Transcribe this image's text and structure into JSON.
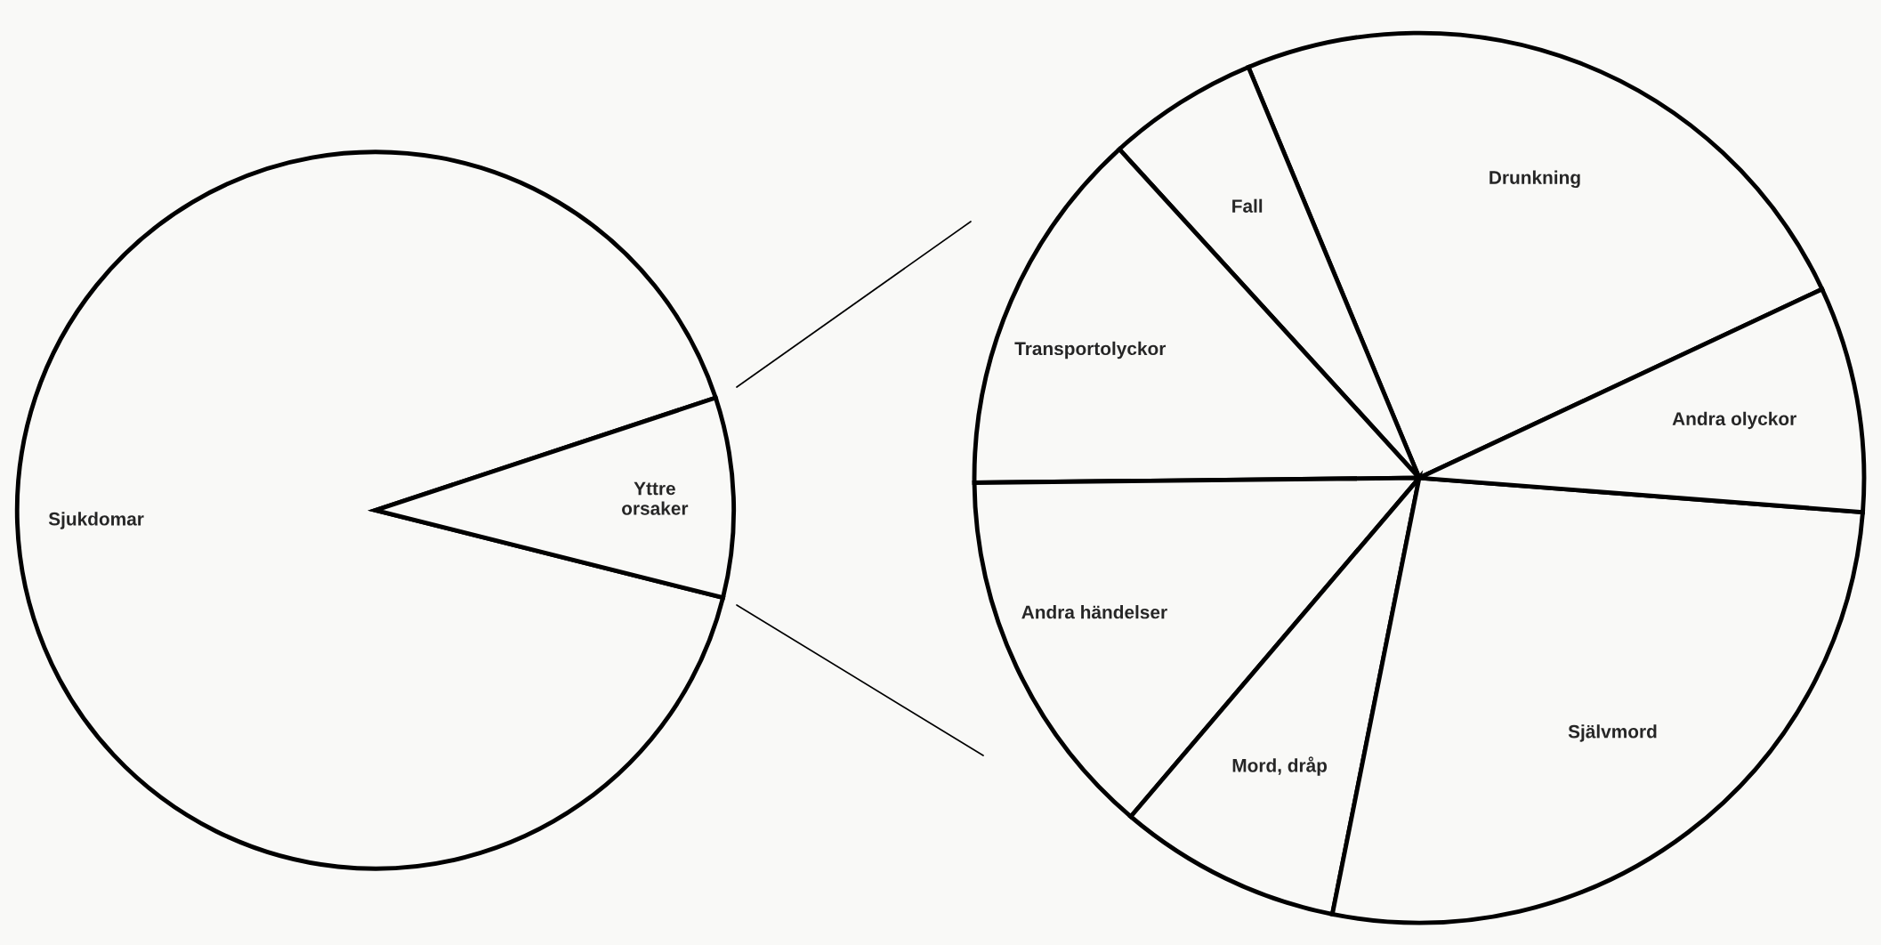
{
  "chart_data": [
    {
      "type": "pie",
      "categories": [
        "Sjukdomar",
        "Yttre orsaker"
      ],
      "values": [
        91.0,
        9.0
      ],
      "colors": [
        "#f9f9f7",
        "#f9f9f7"
      ]
    },
    {
      "type": "pie",
      "categories": [
        "Drunkning",
        "Fall",
        "Transportolyckor",
        "Andra händelser",
        "Mord, dråp",
        "Självmord",
        "Andra olyckor"
      ],
      "values": [
        24.3,
        5.5,
        13.4,
        13.6,
        8.1,
        26.9,
        8.2
      ],
      "colors": [
        "#f9f9f7",
        "#f9f9f7",
        "#f9f9f7",
        "#f9f9f7",
        "#f9f9f7",
        "#f9f9f7",
        "#f9f9f7"
      ]
    }
  ]
}
